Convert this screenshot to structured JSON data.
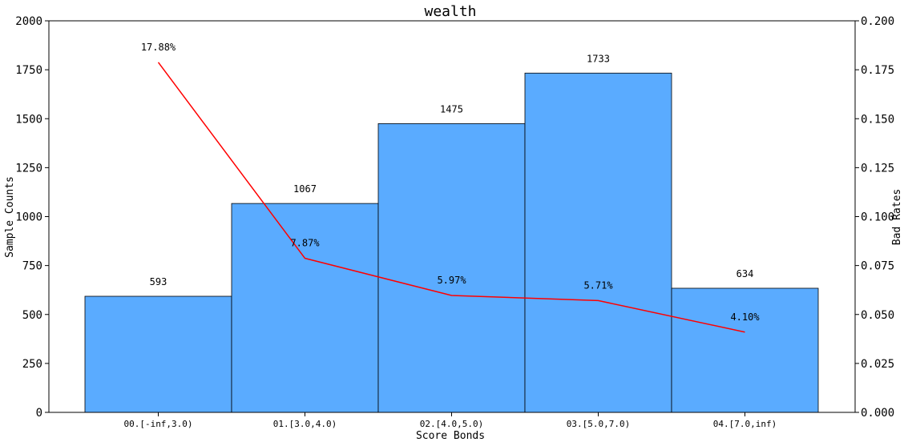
{
  "chart_data": {
    "type": "bar",
    "title": "wealth",
    "xlabel": "Score Bonds",
    "ylabel": "Sample Counts",
    "y2label": "Bad Rates",
    "categories": [
      "00.[-inf,3.0)",
      "01.[3.0,4.0)",
      "02.[4.0,5.0)",
      "03.[5.0,7.0)",
      "04.[7.0,inf)"
    ],
    "series": [
      {
        "type": "bar",
        "axis": "left",
        "values": [
          593,
          1067,
          1475,
          1733,
          634
        ],
        "labels": [
          "593",
          "1067",
          "1475",
          "1733",
          "634"
        ],
        "color": "#5aabff",
        "edge_color": "#000000"
      },
      {
        "type": "line",
        "axis": "right",
        "values": [
          0.1788,
          0.0787,
          0.0597,
          0.0571,
          0.041
        ],
        "labels": [
          "17.88%",
          "7.87%",
          "5.97%",
          "5.71%",
          "4.10%"
        ],
        "color": "#ff0000"
      }
    ],
    "ylim": [
      0,
      2000
    ],
    "yticks": [
      "0",
      "250",
      "500",
      "750",
      "1000",
      "1250",
      "1500",
      "1750",
      "2000"
    ],
    "y2lim": [
      0,
      0.2
    ],
    "y2ticks": [
      "0.000",
      "0.025",
      "0.050",
      "0.075",
      "0.100",
      "0.125",
      "0.150",
      "0.175",
      "0.200"
    ],
    "grid": false,
    "legend": "none"
  }
}
